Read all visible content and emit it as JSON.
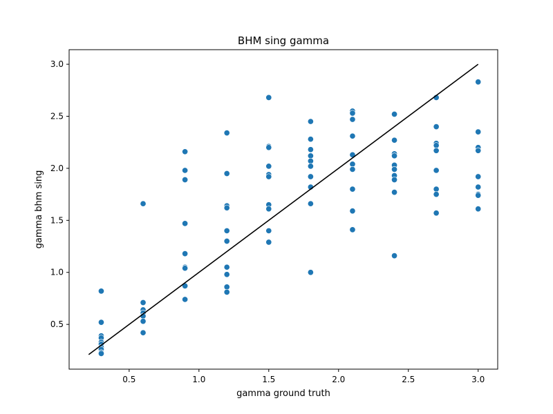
{
  "chart_data": {
    "type": "scatter",
    "title": "BHM sing gamma",
    "xlabel": "gamma ground truth",
    "ylabel": "gamma bhm sing",
    "xlim": [
      0.07,
      3.14
    ],
    "ylim": [
      0.07,
      3.14
    ],
    "xticks": [
      0.5,
      1.0,
      1.5,
      2.0,
      2.5,
      3.0
    ],
    "xtick_labels": [
      "0.5",
      "1.0",
      "1.5",
      "2.0",
      "2.5",
      "3.0"
    ],
    "yticks": [
      0.5,
      1.0,
      1.5,
      2.0,
      2.5,
      3.0
    ],
    "ytick_labels": [
      "0.5",
      "1.0",
      "1.5",
      "2.0",
      "2.5",
      "3.0"
    ],
    "grid": false,
    "point_color": "#1f77b4",
    "line_color": "#000000",
    "reference_line": {
      "x": [
        0.21,
        3.0
      ],
      "y": [
        0.21,
        3.0
      ]
    },
    "points": [
      {
        "x": 0.3,
        "y": 0.82
      },
      {
        "x": 0.3,
        "y": 0.52
      },
      {
        "x": 0.3,
        "y": 0.39
      },
      {
        "x": 0.3,
        "y": 0.37
      },
      {
        "x": 0.3,
        "y": 0.33
      },
      {
        "x": 0.3,
        "y": 0.31
      },
      {
        "x": 0.3,
        "y": 0.28
      },
      {
        "x": 0.3,
        "y": 0.26
      },
      {
        "x": 0.3,
        "y": 0.23
      },
      {
        "x": 0.3,
        "y": 0.22
      },
      {
        "x": 0.6,
        "y": 1.66
      },
      {
        "x": 0.6,
        "y": 0.71
      },
      {
        "x": 0.6,
        "y": 0.64
      },
      {
        "x": 0.6,
        "y": 0.61
      },
      {
        "x": 0.6,
        "y": 0.58
      },
      {
        "x": 0.6,
        "y": 0.53
      },
      {
        "x": 0.6,
        "y": 0.42
      },
      {
        "x": 0.9,
        "y": 2.16
      },
      {
        "x": 0.9,
        "y": 1.98
      },
      {
        "x": 0.9,
        "y": 1.89
      },
      {
        "x": 0.9,
        "y": 1.47
      },
      {
        "x": 0.9,
        "y": 1.18
      },
      {
        "x": 0.9,
        "y": 1.05
      },
      {
        "x": 0.9,
        "y": 1.04
      },
      {
        "x": 0.9,
        "y": 0.87
      },
      {
        "x": 0.9,
        "y": 0.74
      },
      {
        "x": 1.2,
        "y": 2.34
      },
      {
        "x": 1.2,
        "y": 1.95
      },
      {
        "x": 1.2,
        "y": 1.64
      },
      {
        "x": 1.2,
        "y": 1.62
      },
      {
        "x": 1.2,
        "y": 1.4
      },
      {
        "x": 1.2,
        "y": 1.3
      },
      {
        "x": 1.2,
        "y": 1.05
      },
      {
        "x": 1.2,
        "y": 0.98
      },
      {
        "x": 1.2,
        "y": 0.86
      },
      {
        "x": 1.2,
        "y": 0.81
      },
      {
        "x": 1.5,
        "y": 2.68
      },
      {
        "x": 1.5,
        "y": 2.21
      },
      {
        "x": 1.5,
        "y": 2.2
      },
      {
        "x": 1.5,
        "y": 2.02
      },
      {
        "x": 1.5,
        "y": 1.94
      },
      {
        "x": 1.5,
        "y": 1.92
      },
      {
        "x": 1.5,
        "y": 1.65
      },
      {
        "x": 1.5,
        "y": 1.61
      },
      {
        "x": 1.5,
        "y": 1.4
      },
      {
        "x": 1.5,
        "y": 1.29
      },
      {
        "x": 1.8,
        "y": 2.45
      },
      {
        "x": 1.8,
        "y": 2.28
      },
      {
        "x": 1.8,
        "y": 2.18
      },
      {
        "x": 1.8,
        "y": 2.12
      },
      {
        "x": 1.8,
        "y": 2.07
      },
      {
        "x": 1.8,
        "y": 2.02
      },
      {
        "x": 1.8,
        "y": 1.92
      },
      {
        "x": 1.8,
        "y": 1.82
      },
      {
        "x": 1.8,
        "y": 1.66
      },
      {
        "x": 1.8,
        "y": 1.0
      },
      {
        "x": 2.1,
        "y": 2.55
      },
      {
        "x": 2.1,
        "y": 2.53
      },
      {
        "x": 2.1,
        "y": 2.47
      },
      {
        "x": 2.1,
        "y": 2.31
      },
      {
        "x": 2.1,
        "y": 2.13
      },
      {
        "x": 2.1,
        "y": 2.04
      },
      {
        "x": 2.1,
        "y": 1.99
      },
      {
        "x": 2.1,
        "y": 1.8
      },
      {
        "x": 2.1,
        "y": 1.59
      },
      {
        "x": 2.1,
        "y": 1.41
      },
      {
        "x": 2.4,
        "y": 2.52
      },
      {
        "x": 2.4,
        "y": 2.27
      },
      {
        "x": 2.4,
        "y": 2.14
      },
      {
        "x": 2.4,
        "y": 2.12
      },
      {
        "x": 2.4,
        "y": 2.03
      },
      {
        "x": 2.4,
        "y": 1.99
      },
      {
        "x": 2.4,
        "y": 1.93
      },
      {
        "x": 2.4,
        "y": 1.89
      },
      {
        "x": 2.4,
        "y": 1.77
      },
      {
        "x": 2.4,
        "y": 1.16
      },
      {
        "x": 2.7,
        "y": 2.68
      },
      {
        "x": 2.7,
        "y": 2.4
      },
      {
        "x": 2.7,
        "y": 2.24
      },
      {
        "x": 2.7,
        "y": 2.22
      },
      {
        "x": 2.7,
        "y": 2.17
      },
      {
        "x": 2.7,
        "y": 1.98
      },
      {
        "x": 2.7,
        "y": 1.8
      },
      {
        "x": 2.7,
        "y": 1.75
      },
      {
        "x": 2.7,
        "y": 1.57
      },
      {
        "x": 3.0,
        "y": 2.83
      },
      {
        "x": 3.0,
        "y": 2.35
      },
      {
        "x": 3.0,
        "y": 2.2
      },
      {
        "x": 3.0,
        "y": 2.17
      },
      {
        "x": 3.0,
        "y": 1.92
      },
      {
        "x": 3.0,
        "y": 1.82
      },
      {
        "x": 3.0,
        "y": 1.75
      },
      {
        "x": 3.0,
        "y": 1.74
      },
      {
        "x": 3.0,
        "y": 1.61
      }
    ]
  }
}
